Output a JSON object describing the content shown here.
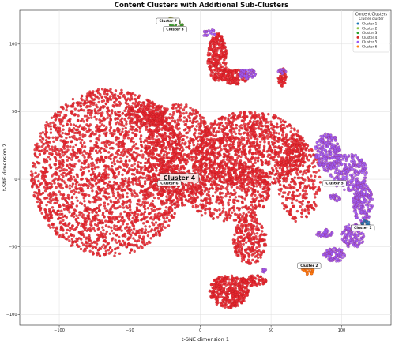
{
  "chart_data": {
    "type": "scatter",
    "title": "Content Clusters with Additional Sub-Clusters",
    "xlabel": "t-SNE dimension 1",
    "ylabel": "t-SNE dimension 2",
    "xlim": [
      -128,
      135
    ],
    "ylim": [
      -108,
      125
    ],
    "x_ticks": [
      -100,
      -50,
      0,
      50,
      100
    ],
    "y_ticks": [
      -100,
      -50,
      0,
      50,
      100
    ],
    "grid": true,
    "legend": {
      "title": "Content Clusters",
      "subtitle": "Cluster cluster",
      "placement": "top-right",
      "entries": [
        {
          "name": "Cluster 1",
          "color": "#1f77b4"
        },
        {
          "name": "Cluster 2",
          "color": "#8bc34a"
        },
        {
          "name": "Cluster 3",
          "color": "#2ca02c"
        },
        {
          "name": "Cluster 4",
          "color": "#d62728"
        },
        {
          "name": "Cluster 5",
          "color": "#9b59f5"
        },
        {
          "name": "Cluster 6",
          "color": "#ff7f0e"
        }
      ]
    },
    "annotations": [
      {
        "text": "Cluster 7",
        "x": -23,
        "y": 117,
        "size": "small"
      },
      {
        "text": "Cluster 3",
        "x": -18,
        "y": 111,
        "size": "small"
      },
      {
        "text": "Cluster 4",
        "x": -15,
        "y": 1,
        "size": "large"
      },
      {
        "text": "Cluster 6",
        "x": -22,
        "y": -3,
        "size": "small"
      },
      {
        "text": "Cluster 5",
        "x": 95,
        "y": -3,
        "size": "small"
      },
      {
        "text": "Cluster 1",
        "x": 115,
        "y": -36,
        "size": "small"
      },
      {
        "text": "Cluster 2",
        "x": 77,
        "y": -64,
        "size": "small"
      }
    ],
    "series": [
      {
        "name": "Cluster 4",
        "color": "#e8262f",
        "regions": [
          {
            "cx": -65,
            "cy": 5,
            "rx": 55,
            "ry": 62,
            "n": 2600
          },
          {
            "cx": -15,
            "cy": 18,
            "rx": 25,
            "ry": 38,
            "n": 700
          },
          {
            "cx": 35,
            "cy": 22,
            "rx": 40,
            "ry": 28,
            "n": 1200
          },
          {
            "cx": 20,
            "cy": -10,
            "rx": 30,
            "ry": 22,
            "n": 500
          },
          {
            "cx": 35,
            "cy": -45,
            "rx": 12,
            "ry": 18,
            "n": 260
          },
          {
            "cx": 70,
            "cy": -2,
            "rx": 15,
            "ry": 30,
            "n": 300
          },
          {
            "cx": 12,
            "cy": 90,
            "rx": 7,
            "ry": 18,
            "n": 260
          },
          {
            "cx": 24,
            "cy": 76,
            "rx": 10,
            "ry": 6,
            "n": 120
          },
          {
            "cx": 58,
            "cy": 75,
            "rx": 3,
            "ry": 7,
            "n": 50
          },
          {
            "cx": 20,
            "cy": -83,
            "rx": 14,
            "ry": 12,
            "n": 350
          },
          {
            "cx": 38,
            "cy": -75,
            "rx": 9,
            "ry": 4,
            "n": 80
          },
          {
            "cx": -38,
            "cy": 48,
            "rx": 14,
            "ry": 10,
            "n": 180
          }
        ]
      },
      {
        "name": "Cluster 5",
        "color": "#9b59f5",
        "regions": [
          {
            "cx": 90,
            "cy": 20,
            "rx": 9,
            "ry": 14,
            "n": 240
          },
          {
            "cx": 105,
            "cy": 5,
            "rx": 13,
            "ry": 14,
            "n": 260
          },
          {
            "cx": 115,
            "cy": -18,
            "rx": 7,
            "ry": 15,
            "n": 200
          },
          {
            "cx": 108,
            "cy": -42,
            "rx": 8,
            "ry": 9,
            "n": 130
          },
          {
            "cx": 95,
            "cy": -56,
            "rx": 8,
            "ry": 5,
            "n": 90
          },
          {
            "cx": 88,
            "cy": -40,
            "rx": 6,
            "ry": 3,
            "n": 40
          },
          {
            "cx": 95,
            "cy": -14,
            "rx": 4,
            "ry": 3,
            "n": 25
          },
          {
            "cx": 33,
            "cy": 78,
            "rx": 6,
            "ry": 4,
            "n": 60
          },
          {
            "cx": 58,
            "cy": 80,
            "rx": 3,
            "ry": 2,
            "n": 15
          },
          {
            "cx": 6,
            "cy": 108,
            "rx": 5,
            "ry": 3,
            "n": 20
          },
          {
            "cx": 45,
            "cy": -68,
            "rx": 2,
            "ry": 2,
            "n": 10
          }
        ]
      },
      {
        "name": "Cluster 1",
        "color": "#1f77b4",
        "regions": [
          {
            "cx": 117,
            "cy": -33,
            "rx": 3,
            "ry": 3,
            "n": 14
          }
        ]
      },
      {
        "name": "Cluster 6",
        "color": "#ff7f0e",
        "regions": [
          {
            "cx": 76,
            "cy": -67,
            "rx": 4,
            "ry": 4,
            "n": 40
          }
        ]
      },
      {
        "name": "Cluster 3",
        "color": "#2ca02c",
        "regions": [
          {
            "cx": -17,
            "cy": 114,
            "rx": 5,
            "ry": 4,
            "n": 30
          }
        ]
      },
      {
        "name": "Cluster 2",
        "color": "#8bc34a",
        "regions": [
          {
            "cx": -22,
            "cy": 118,
            "rx": 3,
            "ry": 2,
            "n": 10
          }
        ]
      }
    ]
  }
}
